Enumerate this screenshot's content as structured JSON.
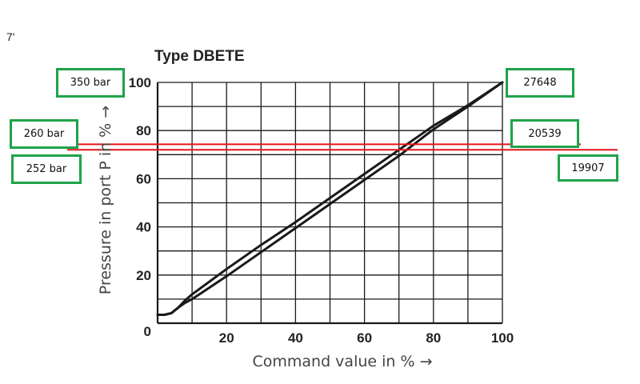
{
  "corner_mark": "7'",
  "colors": {
    "curve": "#1a1a1a",
    "grid": "#1a1a1a",
    "marker": "#e0161b",
    "callout_border": "#1fa34a"
  },
  "chart_data": {
    "type": "line",
    "title": "Type DBETE",
    "xlabel": "Command value in % →",
    "ylabel": "Pressure in port P in % →",
    "xlim": [
      0,
      100
    ],
    "ylim": [
      0,
      100
    ],
    "xticks": [
      "20",
      "40",
      "60",
      "80",
      "100"
    ],
    "yticks": [
      "0",
      "20",
      "40",
      "60",
      "80",
      "100"
    ],
    "grid": true,
    "series": [
      {
        "x": [
          0,
          2,
          4,
          6,
          8,
          10,
          20,
          30,
          40,
          50,
          60,
          70,
          80,
          90,
          100
        ],
        "y": [
          3.5,
          3.5,
          4.2,
          6.5,
          9.5,
          12,
          22.5,
          32.5,
          42,
          52,
          62,
          72,
          82,
          90.5,
          100
        ]
      },
      {
        "x": [
          0,
          2,
          4,
          6,
          8,
          10,
          20,
          30,
          40,
          50,
          60,
          70,
          80,
          90,
          100
        ],
        "y": [
          3.5,
          3.5,
          4.2,
          6.5,
          8.5,
          10,
          19.5,
          29.5,
          39.5,
          49.5,
          59.5,
          69.5,
          80.5,
          90,
          100
        ]
      }
    ],
    "annotations": {
      "callouts": [
        {
          "name": "callout-350-bar",
          "label": "350 bar"
        },
        {
          "name": "callout-260-bar",
          "label": "260 bar"
        },
        {
          "name": "callout-252-bar",
          "label": "252 bar"
        },
        {
          "name": "callout-27648",
          "label": "27648"
        },
        {
          "name": "callout-20539",
          "label": "20539"
        },
        {
          "name": "callout-19907",
          "label": "19907"
        }
      ],
      "marker_lines_percent": [
        74.3,
        72
      ]
    }
  }
}
